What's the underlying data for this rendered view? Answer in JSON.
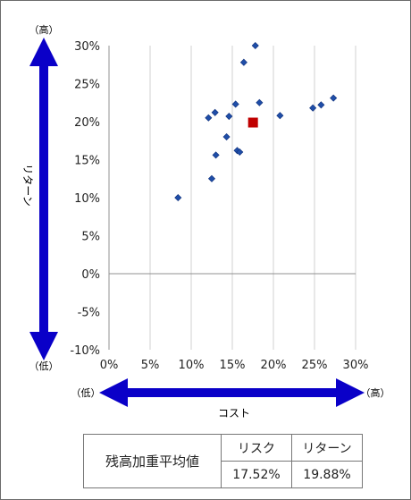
{
  "chart_data": {
    "type": "scatter",
    "x_axis": {
      "min": 0,
      "max": 30,
      "step": 5,
      "unit": "%"
    },
    "y_axis": {
      "min": -10,
      "max": 30,
      "step": 5,
      "unit": "%"
    },
    "xlabel": "コスト",
    "ylabel": "リターン",
    "x_low_label": "（低）",
    "x_high_label": "（高）",
    "y_low_label": "（低）",
    "y_high_label": "（高）",
    "grid": "vertical",
    "colors": {
      "points": "#1f4ea8",
      "average": "#c00000",
      "arrows": "#0a00c8",
      "grid": "#d0d0d0",
      "axis": "#909090"
    },
    "points": [
      {
        "x": 8.4,
        "y": 10.0
      },
      {
        "x": 12.1,
        "y": 20.5
      },
      {
        "x": 12.5,
        "y": 12.5
      },
      {
        "x": 12.9,
        "y": 21.2
      },
      {
        "x": 13.0,
        "y": 15.6
      },
      {
        "x": 14.3,
        "y": 18.0
      },
      {
        "x": 14.6,
        "y": 20.7
      },
      {
        "x": 15.4,
        "y": 22.3
      },
      {
        "x": 15.6,
        "y": 16.2
      },
      {
        "x": 15.9,
        "y": 16.0
      },
      {
        "x": 16.4,
        "y": 27.8
      },
      {
        "x": 17.8,
        "y": 30.0
      },
      {
        "x": 18.3,
        "y": 22.5
      },
      {
        "x": 20.8,
        "y": 20.8
      },
      {
        "x": 24.8,
        "y": 21.8
      },
      {
        "x": 25.8,
        "y": 22.2
      },
      {
        "x": 27.3,
        "y": 23.1
      }
    ],
    "average": {
      "x": 17.52,
      "y": 19.88
    }
  },
  "summary": {
    "row_label": "残高加重平均値",
    "col_risk": "リスク",
    "col_return": "リターン",
    "risk_value": "17.52%",
    "return_value": "19.88%"
  }
}
